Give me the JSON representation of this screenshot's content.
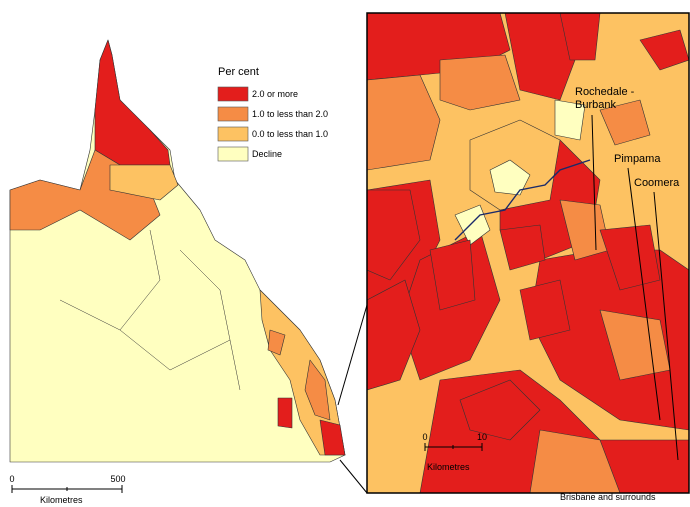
{
  "legend": {
    "title": "Per cent",
    "items": [
      {
        "label": "2.0 or more",
        "color": "#e31e1c"
      },
      {
        "label": "1.0 to less than 2.0",
        "color": "#f58c45"
      },
      {
        "label": "0.0 to less than 1.0",
        "color": "#fdc262"
      },
      {
        "label": "Decline",
        "color": "#ffffc0"
      }
    ]
  },
  "inset_labels": [
    {
      "lines": [
        "Rochedale -",
        "Burbank"
      ]
    },
    {
      "lines": [
        "Pimpama"
      ]
    },
    {
      "lines": [
        "Coomera"
      ]
    }
  ],
  "inset_title": "Brisbane and surrounds",
  "scale_main": {
    "start": "0",
    "end": "500",
    "unit": "Kilometres"
  },
  "scale_inset": {
    "start": "0",
    "end": "10",
    "unit": "Kilometres"
  }
}
